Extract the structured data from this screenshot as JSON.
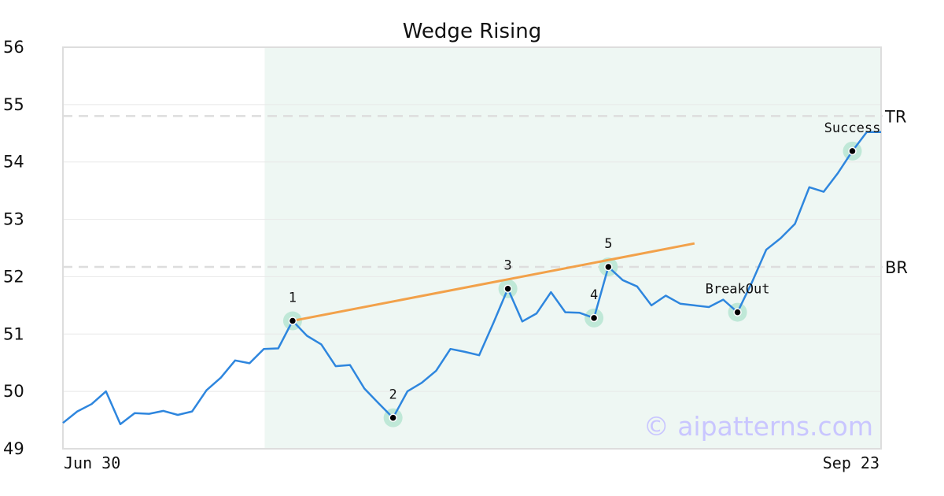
{
  "chart_data": {
    "type": "line",
    "title": "Wedge Rising",
    "watermark": "© aipatterns.com",
    "ylim": [
      49,
      56
    ],
    "yticks": [
      49,
      50,
      51,
      52,
      53,
      54,
      55,
      56
    ],
    "xlim": [
      0,
      57
    ],
    "x_tick_labels": [
      {
        "x": 0,
        "label": "Jun 30"
      },
      {
        "x": 57,
        "label": "Sep 23"
      }
    ],
    "grid": true,
    "series": [
      {
        "color": "#2e86de",
        "x": [
          0,
          1,
          2,
          3,
          4,
          5,
          6,
          7,
          8,
          9,
          10,
          11,
          12,
          13,
          14,
          15,
          16,
          17,
          18,
          19,
          20,
          21,
          22,
          23,
          24,
          25,
          26,
          27,
          28,
          29,
          30,
          31,
          32,
          33,
          34,
          35,
          36,
          37,
          38,
          39,
          40,
          41,
          42,
          43,
          44,
          45,
          46,
          47,
          48,
          49,
          50,
          51,
          52,
          53,
          54,
          55,
          56,
          57
        ],
        "values": [
          49.45,
          49.65,
          49.78,
          50.0,
          49.43,
          49.62,
          49.61,
          49.66,
          49.59,
          49.65,
          50.02,
          50.24,
          50.54,
          50.49,
          50.74,
          50.75,
          51.23,
          50.97,
          50.82,
          50.44,
          50.46,
          50.05,
          49.79,
          49.54,
          50.0,
          50.15,
          50.36,
          50.74,
          50.69,
          50.63,
          51.2,
          51.79,
          51.22,
          51.36,
          51.73,
          51.38,
          51.37,
          51.28,
          52.17,
          51.94,
          51.83,
          51.5,
          51.67,
          51.53,
          51.5,
          51.47,
          51.6,
          51.38,
          51.9,
          52.47,
          52.67,
          52.92,
          53.56,
          53.48,
          53.81,
          54.19,
          54.52,
          54.52
        ]
      }
    ],
    "pattern_region": {
      "x_start": 14,
      "x_end": 57,
      "color": "#eef7f3"
    },
    "trendline": {
      "x": [
        16,
        44
      ],
      "y": [
        51.23,
        52.58
      ],
      "color": "#f2a14a"
    },
    "reference_lines": [
      {
        "label": "TR",
        "y": 54.8
      },
      {
        "label": "BR",
        "y": 52.17
      }
    ],
    "points": [
      {
        "label": "1",
        "x": 16,
        "y": 51.23,
        "label_pos": "above"
      },
      {
        "label": "2",
        "x": 23,
        "y": 49.54,
        "label_pos": "above"
      },
      {
        "label": "3",
        "x": 31,
        "y": 51.79,
        "label_pos": "above"
      },
      {
        "label": "4",
        "x": 37,
        "y": 51.28,
        "label_pos": "above"
      },
      {
        "label": "5",
        "x": 38,
        "y": 52.17,
        "label_pos": "above"
      },
      {
        "label": "BreakOut",
        "x": 47,
        "y": 51.38,
        "label_pos": "above"
      },
      {
        "label": "Success",
        "x": 55,
        "y": 54.19,
        "label_pos": "above"
      }
    ]
  }
}
